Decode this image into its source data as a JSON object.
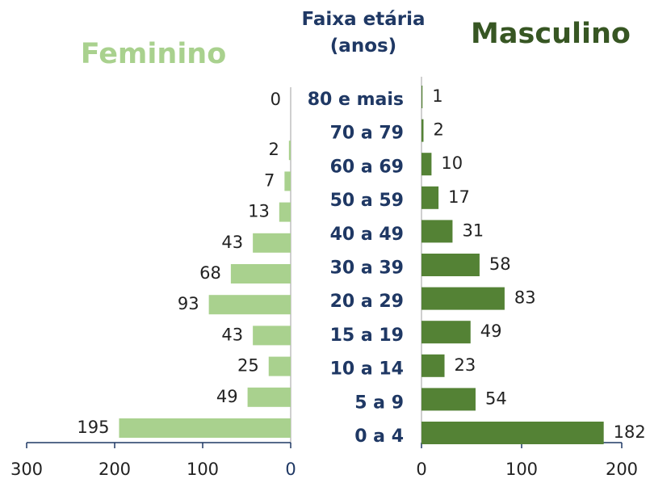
{
  "chart_data": {
    "type": "bar",
    "orientation": "horizontal",
    "title": "Faixa etária (anos)",
    "categories": [
      "80 e mais",
      "70 a 79",
      "60 a 69",
      "50 a 59",
      "40 a 49",
      "30 a 39",
      "20 a 29",
      "15 a 19",
      "10 a 14",
      "5 a 9",
      "0 a 4"
    ],
    "series": [
      {
        "name": "Feminino",
        "color": "#a9d18e",
        "values": [
          0,
          2,
          7,
          13,
          43,
          68,
          93,
          43,
          25,
          49,
          195
        ],
        "xlim": [
          0,
          300
        ],
        "xticks": [
          0,
          100,
          200,
          300
        ],
        "reversed": true
      },
      {
        "name": "Masculino",
        "color": "#548235",
        "values": [
          1,
          2,
          10,
          17,
          31,
          58,
          83,
          49,
          23,
          54,
          182
        ],
        "xlim": [
          0,
          200
        ],
        "xticks": [
          0,
          100,
          200
        ],
        "reversed": false
      }
    ]
  }
}
